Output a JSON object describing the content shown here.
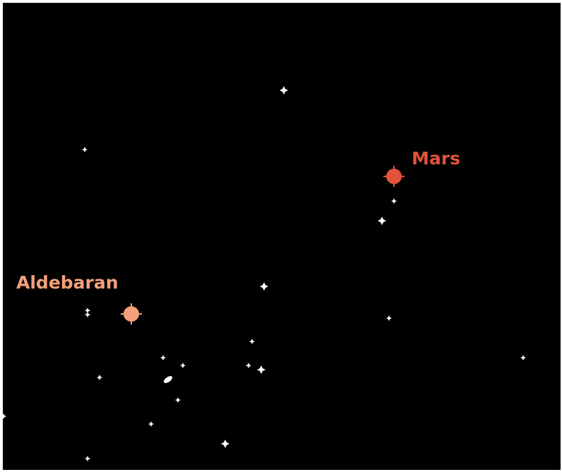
{
  "labels": {
    "planet": "Mars",
    "star": "Aldebaran"
  }
}
